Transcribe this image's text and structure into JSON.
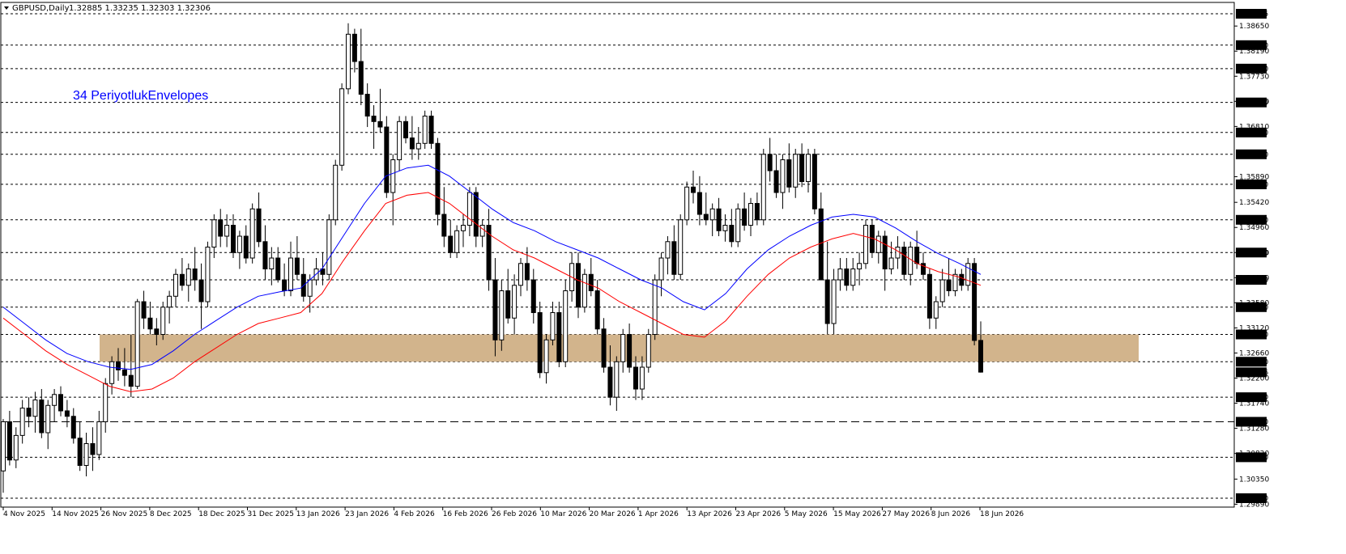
{
  "header": {
    "symbol": "GBPUSD,Daily",
    "ohlc": "1.32885 1.33235 1.32303 1.32306"
  },
  "annotation": "34 PeriyotlukEnvelopes",
  "colors": {
    "background": "#ffffff",
    "candle": "#000000",
    "upper_envelope": "#0000ff",
    "lower_envelope": "#ff0000",
    "zone_fill": "#d2b48c",
    "annotation": "#0000ff"
  },
  "chart_data": {
    "type": "candlestick",
    "title": "GBPUSD,Daily",
    "ylim": [
      1.2989,
      1.3932
    ],
    "y_tick_labels": [
      "1.38650",
      "1.38190",
      "1.37730",
      "1.37270",
      "1.36810",
      "1.35890",
      "1.35420",
      "1.34960",
      "1.34500",
      "1.34040",
      "1.33580",
      "1.33120",
      "1.32660",
      "1.32200",
      "1.31740",
      "1.31280",
      "1.30820",
      "1.30350",
      "1.29890"
    ],
    "levels": [
      "1.38875",
      "1.38300",
      "1.37870",
      "1.37250",
      "1.36700",
      "1.36300",
      "1.35750",
      "1.35100",
      "1.34500",
      "1.34000",
      "1.33500",
      "1.33000",
      "1.32500",
      "1.31850",
      "1.31400",
      "1.30750",
      "1.30000"
    ],
    "current_price": "1.32306",
    "zone": {
      "from": 1.325,
      "to": 1.33
    },
    "dashed_level": 1.314,
    "x_labels": [
      "4 Nov 2025",
      "14 Nov 2025",
      "26 Nov 2025",
      "8 Dec 2025",
      "18 Dec 2025",
      "31 Dec 2025",
      "13 Jan 2026",
      "23 Jan 2026",
      "4 Feb 2026",
      "16 Feb 2026",
      "26 Feb 2026",
      "10 Mar 2026",
      "20 Mar 2026",
      "1 Apr 2026",
      "13 Apr 2026",
      "23 Apr 2026",
      "5 May 2026",
      "15 May 2026",
      "27 May 2026",
      "8 Jun 2026",
      "18 Jun 2026"
    ],
    "candles_ohlc": [
      [
        1.305,
        1.3145,
        1.301,
        1.314
      ],
      [
        1.314,
        1.316,
        1.306,
        1.307
      ],
      [
        1.307,
        1.313,
        1.3055,
        1.3115
      ],
      [
        1.3115,
        1.318,
        1.31,
        1.3165
      ],
      [
        1.3165,
        1.3185,
        1.313,
        1.315
      ],
      [
        1.315,
        1.3195,
        1.312,
        1.318
      ],
      [
        1.318,
        1.32,
        1.311,
        1.312
      ],
      [
        1.312,
        1.318,
        1.309,
        1.317
      ],
      [
        1.317,
        1.32,
        1.314,
        1.319
      ],
      [
        1.319,
        1.3205,
        1.315,
        1.316
      ],
      [
        1.316,
        1.318,
        1.313,
        1.315
      ],
      [
        1.315,
        1.3165,
        1.31,
        1.311
      ],
      [
        1.311,
        1.314,
        1.305,
        1.306
      ],
      [
        1.306,
        1.312,
        1.304,
        1.31
      ],
      [
        1.31,
        1.313,
        1.305,
        1.308
      ],
      [
        1.308,
        1.316,
        1.307,
        1.314
      ],
      [
        1.314,
        1.322,
        1.312,
        1.321
      ],
      [
        1.321,
        1.326,
        1.319,
        1.325
      ],
      [
        1.325,
        1.3275,
        1.3215,
        1.3235
      ],
      [
        1.3235,
        1.3275,
        1.3205,
        1.3225
      ],
      [
        1.3225,
        1.33,
        1.3185,
        1.3205
      ],
      [
        1.3205,
        1.3365,
        1.32,
        1.336
      ],
      [
        1.336,
        1.338,
        1.331,
        1.333
      ],
      [
        1.333,
        1.336,
        1.33,
        1.331
      ],
      [
        1.331,
        1.333,
        1.328,
        1.33
      ],
      [
        1.33,
        1.336,
        1.329,
        1.335
      ],
      [
        1.335,
        1.338,
        1.332,
        1.337
      ],
      [
        1.337,
        1.342,
        1.335,
        1.341
      ],
      [
        1.341,
        1.344,
        1.338,
        1.339
      ],
      [
        1.339,
        1.343,
        1.336,
        1.342
      ],
      [
        1.342,
        1.346,
        1.338,
        1.34
      ],
      [
        1.34,
        1.343,
        1.331,
        1.336
      ],
      [
        1.336,
        1.347,
        1.335,
        1.346
      ],
      [
        1.346,
        1.352,
        1.344,
        1.351
      ],
      [
        1.351,
        1.353,
        1.346,
        1.348
      ],
      [
        1.348,
        1.352,
        1.346,
        1.35
      ],
      [
        1.35,
        1.352,
        1.344,
        1.345
      ],
      [
        1.345,
        1.349,
        1.342,
        1.348
      ],
      [
        1.348,
        1.35,
        1.343,
        1.344
      ],
      [
        1.344,
        1.354,
        1.343,
        1.353
      ],
      [
        1.353,
        1.356,
        1.346,
        1.347
      ],
      [
        1.347,
        1.35,
        1.34,
        1.342
      ],
      [
        1.342,
        1.346,
        1.339,
        1.344
      ],
      [
        1.344,
        1.346,
        1.3395,
        1.34
      ],
      [
        1.34,
        1.343,
        1.337,
        1.338
      ],
      [
        1.338,
        1.347,
        1.337,
        1.344
      ],
      [
        1.344,
        1.348,
        1.34,
        1.341
      ],
      [
        1.341,
        1.344,
        1.336,
        1.337
      ],
      [
        1.337,
        1.341,
        1.334,
        1.34
      ],
      [
        1.34,
        1.344,
        1.339,
        1.342
      ],
      [
        1.342,
        1.345,
        1.339,
        1.341
      ],
      [
        1.341,
        1.352,
        1.34,
        1.351
      ],
      [
        1.351,
        1.362,
        1.35,
        1.361
      ],
      [
        1.361,
        1.376,
        1.36,
        1.375
      ],
      [
        1.375,
        1.387,
        1.374,
        1.385
      ],
      [
        1.385,
        1.386,
        1.378,
        1.38
      ],
      [
        1.38,
        1.386,
        1.372,
        1.374
      ],
      [
        1.374,
        1.376,
        1.368,
        1.37
      ],
      [
        1.37,
        1.372,
        1.364,
        1.369
      ],
      [
        1.369,
        1.375,
        1.367,
        1.368
      ],
      [
        1.368,
        1.37,
        1.355,
        1.356
      ],
      [
        1.356,
        1.363,
        1.35,
        1.362
      ],
      [
        1.362,
        1.37,
        1.36,
        1.369
      ],
      [
        1.369,
        1.37,
        1.365,
        1.366
      ],
      [
        1.366,
        1.37,
        1.362,
        1.364
      ],
      [
        1.364,
        1.368,
        1.362,
        1.365
      ],
      [
        1.365,
        1.371,
        1.364,
        1.37
      ],
      [
        1.37,
        1.371,
        1.364,
        1.365
      ],
      [
        1.365,
        1.366,
        1.35,
        1.352
      ],
      [
        1.352,
        1.357,
        1.346,
        1.348
      ],
      [
        1.348,
        1.351,
        1.344,
        1.345
      ],
      [
        1.345,
        1.35,
        1.344,
        1.349
      ],
      [
        1.349,
        1.352,
        1.346,
        1.35
      ],
      [
        1.35,
        1.357,
        1.348,
        1.356
      ],
      [
        1.356,
        1.357,
        1.346,
        1.348
      ],
      [
        1.348,
        1.351,
        1.346,
        1.35
      ],
      [
        1.35,
        1.353,
        1.338,
        1.34
      ],
      [
        1.34,
        1.344,
        1.326,
        1.329
      ],
      [
        1.329,
        1.34,
        1.327,
        1.338
      ],
      [
        1.338,
        1.342,
        1.332,
        1.333
      ],
      [
        1.333,
        1.341,
        1.33,
        1.339
      ],
      [
        1.339,
        1.344,
        1.337,
        1.343
      ],
      [
        1.343,
        1.346,
        1.338,
        1.34
      ],
      [
        1.34,
        1.342,
        1.332,
        1.334
      ],
      [
        1.334,
        1.336,
        1.322,
        1.323
      ],
      [
        1.323,
        1.33,
        1.321,
        1.329
      ],
      [
        1.329,
        1.336,
        1.328,
        1.334
      ],
      [
        1.334,
        1.336,
        1.324,
        1.325
      ],
      [
        1.325,
        1.34,
        1.324,
        1.338
      ],
      [
        1.338,
        1.345,
        1.336,
        1.343
      ],
      [
        1.343,
        1.345,
        1.333,
        1.335
      ],
      [
        1.335,
        1.342,
        1.334,
        1.341
      ],
      [
        1.341,
        1.344,
        1.337,
        1.338
      ],
      [
        1.338,
        1.34,
        1.33,
        1.331
      ],
      [
        1.331,
        1.333,
        1.323,
        1.324
      ],
      [
        1.324,
        1.328,
        1.317,
        1.3185
      ],
      [
        1.3185,
        1.326,
        1.316,
        1.325
      ],
      [
        1.325,
        1.331,
        1.323,
        1.33
      ],
      [
        1.33,
        1.332,
        1.323,
        1.324
      ],
      [
        1.324,
        1.326,
        1.318,
        1.32
      ],
      [
        1.32,
        1.326,
        1.318,
        1.324
      ],
      [
        1.324,
        1.331,
        1.323,
        1.33
      ],
      [
        1.33,
        1.341,
        1.329,
        1.34
      ],
      [
        1.34,
        1.345,
        1.337,
        1.344
      ],
      [
        1.344,
        1.348,
        1.341,
        1.347
      ],
      [
        1.347,
        1.35,
        1.34,
        1.341
      ],
      [
        1.341,
        1.352,
        1.34,
        1.351
      ],
      [
        1.351,
        1.358,
        1.35,
        1.357
      ],
      [
        1.357,
        1.36,
        1.354,
        1.356
      ],
      [
        1.356,
        1.359,
        1.35,
        1.352
      ],
      [
        1.352,
        1.356,
        1.35,
        1.351
      ],
      [
        1.351,
        1.354,
        1.348,
        1.353
      ],
      [
        1.353,
        1.355,
        1.348,
        1.349
      ],
      [
        1.349,
        1.352,
        1.347,
        1.35
      ],
      [
        1.35,
        1.353,
        1.346,
        1.347
      ],
      [
        1.347,
        1.354,
        1.346,
        1.353
      ],
      [
        1.353,
        1.356,
        1.349,
        1.35
      ],
      [
        1.35,
        1.355,
        1.348,
        1.354
      ],
      [
        1.354,
        1.356,
        1.35,
        1.351
      ],
      [
        1.351,
        1.364,
        1.35,
        1.363
      ],
      [
        1.363,
        1.366,
        1.358,
        1.36
      ],
      [
        1.36,
        1.363,
        1.355,
        1.356
      ],
      [
        1.356,
        1.363,
        1.353,
        1.362
      ],
      [
        1.362,
        1.365,
        1.356,
        1.357
      ],
      [
        1.357,
        1.364,
        1.355,
        1.363
      ],
      [
        1.363,
        1.365,
        1.357,
        1.358
      ],
      [
        1.358,
        1.364,
        1.356,
        1.363
      ],
      [
        1.363,
        1.364,
        1.352,
        1.353
      ],
      [
        1.353,
        1.356,
        1.345,
        1.34
      ],
      [
        1.34,
        1.347,
        1.33,
        1.332
      ],
      [
        1.332,
        1.342,
        1.33,
        1.34
      ],
      [
        1.34,
        1.344,
        1.338,
        1.342
      ],
      [
        1.342,
        1.344,
        1.338,
        1.339
      ],
      [
        1.339,
        1.344,
        1.338,
        1.342
      ],
      [
        1.342,
        1.345,
        1.339,
        1.343
      ],
      [
        1.343,
        1.351,
        1.342,
        1.35
      ],
      [
        1.35,
        1.351,
        1.344,
        1.345
      ],
      [
        1.345,
        1.349,
        1.343,
        1.348
      ],
      [
        1.348,
        1.349,
        1.338,
        1.342
      ],
      [
        1.342,
        1.347,
        1.341,
        1.344
      ],
      [
        1.344,
        1.348,
        1.342,
        1.346
      ],
      [
        1.346,
        1.347,
        1.34,
        1.341
      ],
      [
        1.341,
        1.347,
        1.339,
        1.346
      ],
      [
        1.346,
        1.349,
        1.342,
        1.343
      ],
      [
        1.343,
        1.345,
        1.34,
        1.341
      ],
      [
        1.341,
        1.342,
        1.331,
        1.333
      ],
      [
        1.333,
        1.337,
        1.331,
        1.336
      ],
      [
        1.336,
        1.342,
        1.335,
        1.34
      ],
      [
        1.34,
        1.344,
        1.337,
        1.338
      ],
      [
        1.338,
        1.342,
        1.337,
        1.341
      ],
      [
        1.341,
        1.342,
        1.338,
        1.339
      ],
      [
        1.339,
        1.344,
        1.338,
        1.343
      ],
      [
        1.343,
        1.344,
        1.328,
        1.3289
      ],
      [
        1.3289,
        1.3324,
        1.323,
        1.3231
      ]
    ],
    "upper_envelope": [
      1.335,
      1.332,
      1.329,
      1.3265,
      1.325,
      1.324,
      1.3236,
      1.3245,
      1.327,
      1.33,
      1.3325,
      1.335,
      1.337,
      1.3378,
      1.3385,
      1.342,
      1.348,
      1.354,
      1.359,
      1.3605,
      1.361,
      1.359,
      1.356,
      1.353,
      1.3505,
      1.349,
      1.347,
      1.3455,
      1.344,
      1.342,
      1.34,
      1.3385,
      1.336,
      1.3345,
      1.3375,
      1.342,
      1.3455,
      1.348,
      1.35,
      1.3515,
      1.352,
      1.3515,
      1.3495,
      1.347,
      1.3448,
      1.343,
      1.341
    ],
    "lower_envelope": [
      1.333,
      1.33,
      1.327,
      1.3245,
      1.3225,
      1.3205,
      1.3195,
      1.32,
      1.322,
      1.325,
      1.3275,
      1.33,
      1.332,
      1.333,
      1.334,
      1.3375,
      1.3435,
      1.349,
      1.354,
      1.3555,
      1.356,
      1.354,
      1.351,
      1.348,
      1.3455,
      1.344,
      1.342,
      1.34,
      1.3385,
      1.336,
      1.334,
      1.332,
      1.33,
      1.3295,
      1.3325,
      1.337,
      1.341,
      1.344,
      1.346,
      1.3475,
      1.3485,
      1.3475,
      1.3455,
      1.343,
      1.3415,
      1.3405,
      1.339
    ]
  }
}
